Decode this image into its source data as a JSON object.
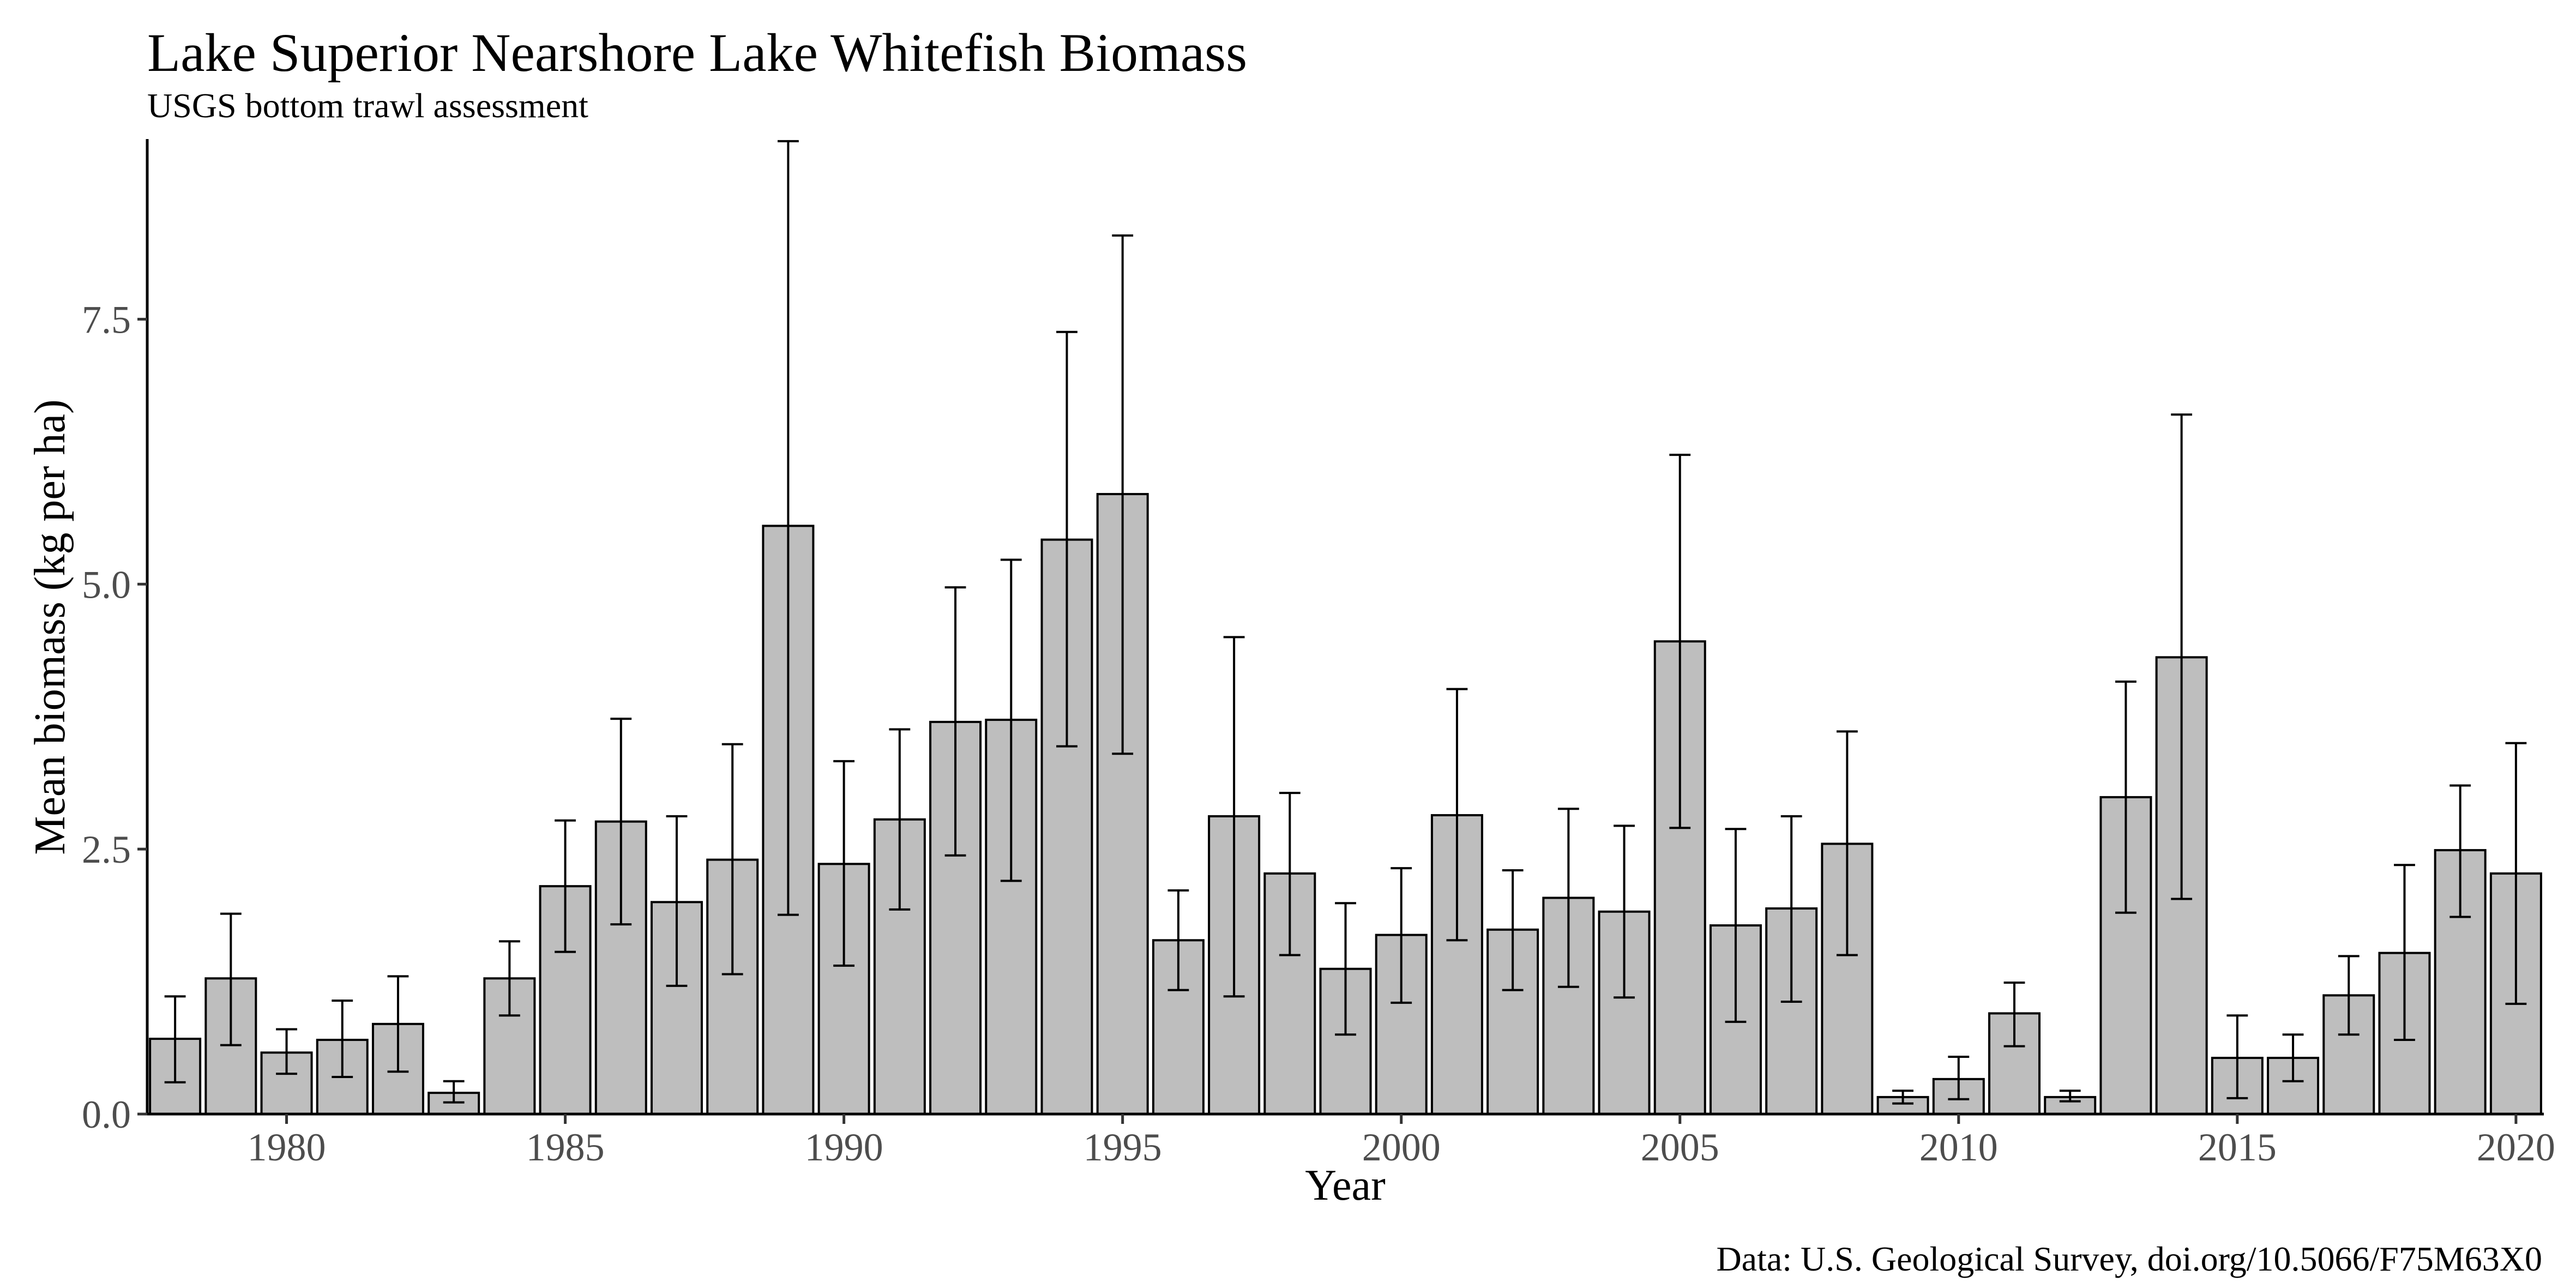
{
  "chart_data": {
    "type": "bar",
    "title": "Lake Superior Nearshore Lake Whitefish Biomass",
    "subtitle": "USGS bottom trawl assessment",
    "xlabel": "Year",
    "ylabel": "Mean biomass (kg per ha)",
    "caption": "Data: U.S. Geological Survey, doi.org/10.5066/F75M63X0",
    "xlim": [
      1977.5,
      2020.5
    ],
    "ylim": [
      0,
      9.2
    ],
    "x_ticks": [
      1980,
      1985,
      1990,
      1995,
      2000,
      2005,
      2010,
      2015,
      2020
    ],
    "x_tick_labels": [
      "1980",
      "1985",
      "1990",
      "1995",
      "2000",
      "2005",
      "2010",
      "2015",
      "2020"
    ],
    "y_ticks": [
      0,
      2.5,
      5,
      7.5
    ],
    "y_tick_labels": [
      "0.0",
      "2.5",
      "5.0",
      "7.5"
    ],
    "grid": false,
    "bar_color": "#bebebe",
    "bar_outline": "#000000",
    "years": [
      1978,
      1979,
      1980,
      1981,
      1982,
      1983,
      1984,
      1985,
      1986,
      1987,
      1988,
      1989,
      1990,
      1991,
      1992,
      1993,
      1994,
      1995,
      1996,
      1997,
      1998,
      1999,
      2000,
      2001,
      2002,
      2003,
      2004,
      2005,
      2006,
      2007,
      2008,
      2009,
      2010,
      2011,
      2012,
      2013,
      2014,
      2015,
      2016,
      2017,
      2018,
      2019,
      2020
    ],
    "values": [
      0.71,
      1.28,
      0.58,
      0.7,
      0.85,
      0.2,
      1.28,
      2.15,
      2.76,
      2.0,
      2.4,
      5.55,
      2.36,
      2.78,
      3.7,
      3.72,
      5.42,
      5.85,
      1.64,
      2.81,
      2.27,
      1.37,
      1.69,
      2.82,
      1.74,
      2.04,
      1.91,
      4.46,
      1.78,
      1.94,
      2.55,
      0.16,
      0.33,
      0.95,
      0.16,
      2.99,
      4.31,
      0.53,
      0.53,
      1.12,
      1.52,
      2.49,
      2.27
    ],
    "error_low": [
      0.3,
      0.65,
      0.38,
      0.35,
      0.4,
      0.11,
      0.93,
      1.53,
      1.79,
      1.21,
      1.32,
      1.88,
      1.4,
      1.93,
      2.44,
      2.2,
      3.47,
      3.4,
      1.17,
      1.11,
      1.5,
      0.75,
      1.05,
      1.64,
      1.17,
      1.2,
      1.1,
      2.7,
      0.87,
      1.06,
      1.5,
      0.1,
      0.14,
      0.64,
      0.12,
      1.9,
      2.03,
      0.15,
      0.31,
      0.75,
      0.7,
      1.86,
      1.04
    ],
    "error_high": [
      1.11,
      1.89,
      0.8,
      1.07,
      1.3,
      0.31,
      1.63,
      2.77,
      3.73,
      2.81,
      3.49,
      9.18,
      3.33,
      3.63,
      4.97,
      5.23,
      7.38,
      8.29,
      2.11,
      4.5,
      3.03,
      1.99,
      2.32,
      4.01,
      2.3,
      2.88,
      2.72,
      6.22,
      2.69,
      2.81,
      3.61,
      0.22,
      0.54,
      1.24,
      0.22,
      4.08,
      6.6,
      0.93,
      0.75,
      1.49,
      2.35,
      3.1,
      3.5
    ]
  }
}
